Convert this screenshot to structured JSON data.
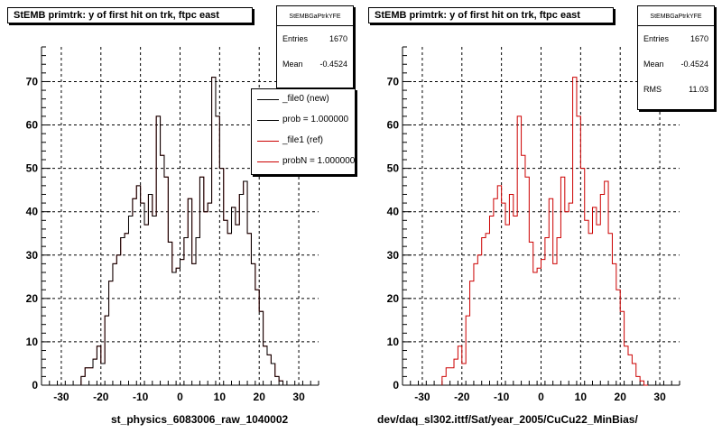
{
  "chart_data": [
    {
      "type": "histogram",
      "title": "StEMB primtrk: y of first hit on trk, ftpc east",
      "xlabel": "st_physics_6083006_raw_1040002",
      "ylabel": "",
      "xlim": [
        -35,
        35
      ],
      "ylim": [
        0,
        78
      ],
      "xticks": [
        -30,
        -20,
        -10,
        0,
        10,
        20,
        30
      ],
      "yticks": [
        0,
        10,
        20,
        30,
        40,
        50,
        60,
        70
      ],
      "grid": true,
      "bins_low_edge": [
        -25,
        -24,
        -23,
        -22,
        -21,
        -20,
        -19,
        -18,
        -17,
        -16,
        -15,
        -14,
        -13,
        -12,
        -11,
        -10,
        -9,
        -8,
        -7,
        -6,
        -5,
        -4,
        -3,
        -2,
        -1,
        0,
        1,
        2,
        3,
        4,
        5,
        6,
        7,
        8,
        9,
        10,
        11,
        12,
        13,
        14,
        15,
        16,
        17,
        18,
        19,
        20,
        21,
        22,
        23,
        24,
        25,
        26
      ],
      "bin_width": 1,
      "series": [
        {
          "name": "_file0 (new)",
          "color": "#000000",
          "values": [
            2,
            4,
            4,
            6,
            9,
            5,
            16,
            24,
            28,
            30,
            34,
            35,
            39,
            43,
            46,
            42,
            37,
            44,
            39,
            62,
            53,
            48,
            33,
            26,
            27,
            29,
            34,
            43,
            28,
            34,
            48,
            40,
            42,
            71,
            62,
            50,
            38,
            35,
            41,
            37,
            44,
            47,
            35,
            28,
            22,
            17,
            9,
            7,
            5,
            2,
            1,
            0
          ]
        },
        {
          "name": "_file1 (ref)",
          "color": "#cc0000",
          "values": [
            2,
            4,
            4,
            6,
            9,
            5,
            16,
            24,
            28,
            30,
            34,
            35,
            39,
            43,
            46,
            42,
            37,
            44,
            39,
            62,
            53,
            48,
            33,
            26,
            27,
            29,
            34,
            43,
            28,
            34,
            48,
            40,
            42,
            71,
            62,
            50,
            38,
            35,
            41,
            37,
            44,
            47,
            35,
            28,
            22,
            17,
            9,
            7,
            5,
            2,
            1,
            0
          ]
        }
      ],
      "legend": {
        "position": "top-right",
        "entries": [
          {
            "label": "_file0 (new)",
            "color": "#000000"
          },
          {
            "label": "prob = 1.000000",
            "color": "#000000"
          },
          {
            "label": "_file1 (ref)",
            "color": "#cc0000"
          },
          {
            "label": "probN = 1.000000",
            "color": "#cc0000"
          }
        ]
      },
      "stats": {
        "name": "StEMBGaPtrkYFE",
        "entries_label": "Entries",
        "entries": "1670",
        "mean_label": "Mean",
        "mean": "-0.4524"
      }
    },
    {
      "type": "histogram",
      "title": "StEMB primtrk: y of first hit on trk, ftpc east",
      "xlabel": "dev/daq_sl302.ittf/Sat/year_2005/CuCu22_MinBias/",
      "ylabel": "",
      "xlim": [
        -35,
        35
      ],
      "ylim": [
        0,
        78
      ],
      "xticks": [
        -30,
        -20,
        -10,
        0,
        10,
        20,
        30
      ],
      "yticks": [
        0,
        10,
        20,
        30,
        40,
        50,
        60,
        70
      ],
      "grid": true,
      "bins_low_edge": [
        -25,
        -24,
        -23,
        -22,
        -21,
        -20,
        -19,
        -18,
        -17,
        -16,
        -15,
        -14,
        -13,
        -12,
        -11,
        -10,
        -9,
        -8,
        -7,
        -6,
        -5,
        -4,
        -3,
        -2,
        -1,
        0,
        1,
        2,
        3,
        4,
        5,
        6,
        7,
        8,
        9,
        10,
        11,
        12,
        13,
        14,
        15,
        16,
        17,
        18,
        19,
        20,
        21,
        22,
        23,
        24,
        25,
        26
      ],
      "bin_width": 1,
      "series": [
        {
          "name": "",
          "color": "#cc0000",
          "values": [
            2,
            4,
            4,
            6,
            9,
            5,
            16,
            24,
            28,
            30,
            34,
            35,
            39,
            43,
            46,
            42,
            37,
            44,
            39,
            62,
            53,
            48,
            33,
            26,
            27,
            29,
            34,
            43,
            28,
            34,
            48,
            40,
            42,
            71,
            62,
            50,
            38,
            35,
            41,
            37,
            44,
            47,
            35,
            28,
            22,
            17,
            9,
            7,
            5,
            2,
            1,
            0
          ]
        }
      ],
      "stats": {
        "name": "StEMBGaPtrkYFE",
        "entries_label": "Entries",
        "entries": "1670",
        "mean_label": "Mean",
        "mean": "-0.4524",
        "rms_label": "RMS",
        "rms": "11.03"
      }
    }
  ],
  "colors": {
    "axis": "#000000",
    "grid": "#000000",
    "new": "#000000",
    "ref": "#cc0000"
  }
}
